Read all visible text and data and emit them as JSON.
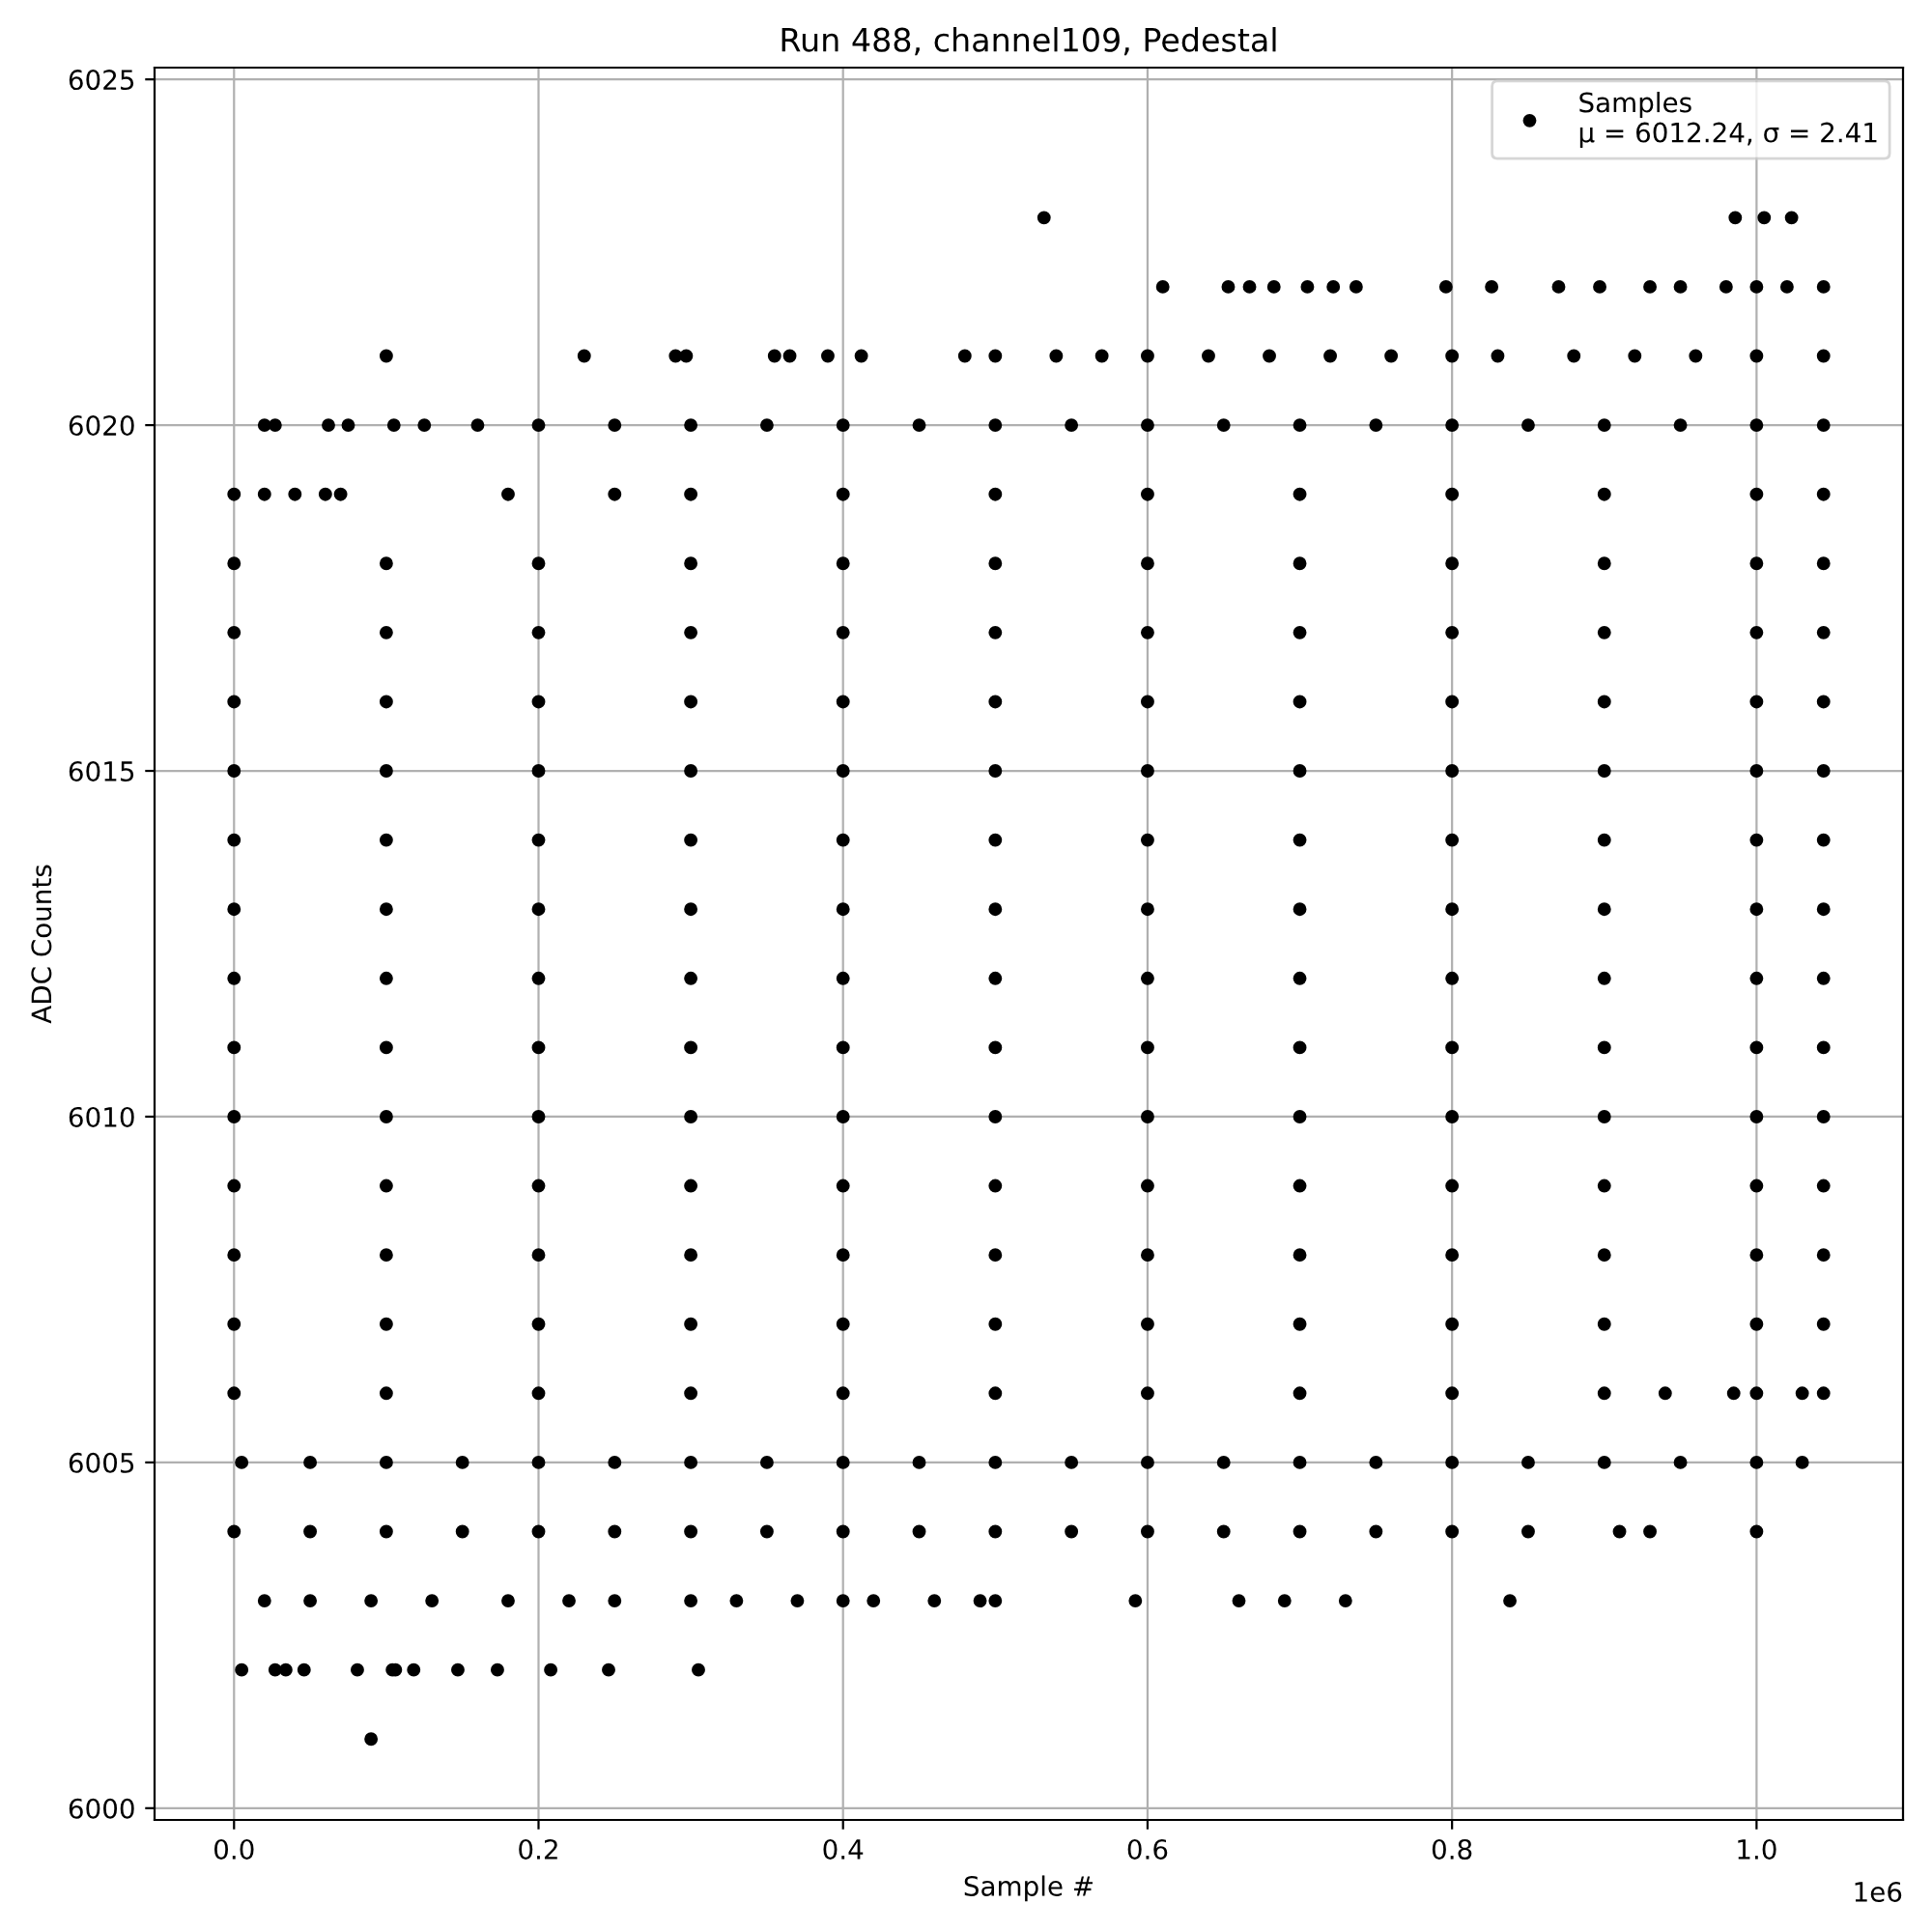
{
  "chart_data": {
    "type": "scatter",
    "title": "Run 488, channel109, Pedestal",
    "xlabel": "Sample #",
    "ylabel": "ADC Counts",
    "xlim": [
      -0.0522,
      1.0962
    ],
    "ylim": [
      5999.83,
      6025.17
    ],
    "xticks": [
      {
        "value": 0,
        "label": "0.0"
      },
      0.2,
      0.4,
      0.6,
      0.8,
      {
        "value": 1,
        "label": "1.0"
      }
    ],
    "yticks": [
      6000,
      6005,
      6010,
      6015,
      6020,
      6025
    ],
    "annotations": [
      "1e6"
    ],
    "grid": true,
    "legend": "top right",
    "marker": "circle",
    "series": [
      {
        "name": "Samples\nμ = 6012.24, σ = 2.41",
        "color": "#000000",
        "x": [
          0.09,
          0.005,
          0.027,
          0.034,
          0.046,
          0.081,
          0.104,
          0.106,
          0.118,
          0.147,
          0.173,
          0.208,
          0.246,
          0.305,
          0.02,
          0.05,
          0.09,
          0.13,
          0.18,
          0.22,
          0.25,
          0.3,
          0.33,
          0.37,
          0.4,
          0.42,
          0.46,
          0.49,
          0.5,
          0.592,
          0.66,
          0.69,
          0.73,
          0.838,
          0,
          0.05,
          0.1,
          0.15,
          0.2,
          0.25,
          0.3,
          0.35,
          0.4,
          0.45,
          0.5,
          0.55,
          0.6,
          0.65,
          0.7,
          0.75,
          0.8,
          0.85,
          0.91,
          0.93,
          1.0,
          0.005,
          0.05,
          0.1,
          0.15,
          0.2,
          0.25,
          0.3,
          0.35,
          0.4,
          0.45,
          0.5,
          0.55,
          0.6,
          0.65,
          0.7,
          0.75,
          0.8,
          0.85,
          0.9,
          0.95,
          1.0,
          1.03,
          0,
          0.1,
          0.2,
          0.3,
          0.4,
          0.5,
          0.6,
          0.7,
          0.8,
          0.9,
          0.94,
          0.985,
          1.0,
          1.03,
          1.044,
          0,
          0.1,
          0.2,
          0.3,
          0.4,
          0.5,
          0.6,
          0.7,
          0.8,
          0.9,
          1.0,
          1.044,
          0,
          0.1,
          0.2,
          0.3,
          0.4,
          0.5,
          0.6,
          0.7,
          0.8,
          0.9,
          1.0,
          1.044,
          0,
          0.1,
          0.2,
          0.3,
          0.4,
          0.5,
          0.6,
          0.7,
          0.8,
          0.9,
          1.0,
          1.044,
          0,
          0.1,
          0.2,
          0.3,
          0.4,
          0.5,
          0.6,
          0.7,
          0.8,
          0.9,
          1.0,
          1.044,
          0,
          0.1,
          0.2,
          0.3,
          0.4,
          0.5,
          0.6,
          0.7,
          0.8,
          0.9,
          1.0,
          1.044,
          0,
          0.1,
          0.2,
          0.3,
          0.4,
          0.5,
          0.6,
          0.7,
          0.8,
          0.9,
          1.0,
          1.044,
          0,
          0.1,
          0.2,
          0.3,
          0.4,
          0.5,
          0.6,
          0.7,
          0.8,
          0.9,
          1.0,
          1.044,
          0,
          0.1,
          0.2,
          0.3,
          0.4,
          0.5,
          0.6,
          0.7,
          0.8,
          0.9,
          1.0,
          1.044,
          0,
          0.1,
          0.2,
          0.3,
          0.4,
          0.5,
          0.6,
          0.7,
          0.8,
          0.9,
          1.0,
          1.044,
          0,
          0.1,
          0.2,
          0.3,
          0.4,
          0.5,
          0.6,
          0.7,
          0.8,
          0.9,
          1.0,
          1.044,
          0,
          0.1,
          0.2,
          0.3,
          0.4,
          0.5,
          0.6,
          0.7,
          0.8,
          0.9,
          1.0,
          1.044,
          0,
          0.1,
          0.2,
          0.3,
          0.4,
          0.5,
          0.6,
          0.7,
          0.8,
          0.9,
          1.0,
          1.044,
          0,
          0.02,
          0.04,
          0.06,
          0.07,
          0.18,
          0.25,
          0.3,
          0.4,
          0.5,
          0.6,
          0.7,
          0.8,
          0.9,
          1.0,
          1.044,
          0.02,
          0.027,
          0.062,
          0.075,
          0.105,
          0.125,
          0.16,
          0.2,
          0.25,
          0.3,
          0.35,
          0.4,
          0.45,
          0.5,
          0.55,
          0.6,
          0.65,
          0.7,
          0.75,
          0.8,
          0.85,
          0.9,
          0.95,
          1.0,
          1.044,
          0.1,
          0.23,
          0.29,
          0.297,
          0.355,
          0.365,
          0.39,
          0.412,
          0.48,
          0.5,
          0.54,
          0.57,
          0.6,
          0.64,
          0.68,
          0.72,
          0.76,
          0.8,
          0.83,
          0.88,
          0.92,
          0.96,
          1.0,
          1.044,
          0.61,
          0.653,
          0.667,
          0.683,
          0.705,
          0.722,
          0.737,
          0.796,
          0.826,
          0.87,
          0.897,
          0.93,
          0.95,
          0.98,
          1.0,
          1.02,
          1.044,
          0.532,
          0.986,
          1.005,
          1.023
        ],
        "values": [
          6001,
          6002,
          6002,
          6002,
          6002,
          6002,
          6002,
          6002,
          6002,
          6002,
          6002,
          6002,
          6002,
          6002,
          6003,
          6003,
          6003,
          6003,
          6003,
          6003,
          6003,
          6003,
          6003,
          6003,
          6003,
          6003,
          6003,
          6003,
          6003,
          6003,
          6003,
          6003,
          6003,
          6003,
          6004,
          6004,
          6004,
          6004,
          6004,
          6004,
          6004,
          6004,
          6004,
          6004,
          6004,
          6004,
          6004,
          6004,
          6004,
          6004,
          6004,
          6004,
          6004,
          6004,
          6004,
          6005,
          6005,
          6005,
          6005,
          6005,
          6005,
          6005,
          6005,
          6005,
          6005,
          6005,
          6005,
          6005,
          6005,
          6005,
          6005,
          6005,
          6005,
          6005,
          6005,
          6005,
          6005,
          6006,
          6006,
          6006,
          6006,
          6006,
          6006,
          6006,
          6006,
          6006,
          6006,
          6006,
          6006,
          6006,
          6006,
          6006,
          6007,
          6007,
          6007,
          6007,
          6007,
          6007,
          6007,
          6007,
          6007,
          6007,
          6007,
          6007,
          6008,
          6008,
          6008,
          6008,
          6008,
          6008,
          6008,
          6008,
          6008,
          6008,
          6008,
          6008,
          6009,
          6009,
          6009,
          6009,
          6009,
          6009,
          6009,
          6009,
          6009,
          6009,
          6009,
          6009,
          6010,
          6010,
          6010,
          6010,
          6010,
          6010,
          6010,
          6010,
          6010,
          6010,
          6010,
          6010,
          6011,
          6011,
          6011,
          6011,
          6011,
          6011,
          6011,
          6011,
          6011,
          6011,
          6011,
          6011,
          6012,
          6012,
          6012,
          6012,
          6012,
          6012,
          6012,
          6012,
          6012,
          6012,
          6012,
          6012,
          6013,
          6013,
          6013,
          6013,
          6013,
          6013,
          6013,
          6013,
          6013,
          6013,
          6013,
          6013,
          6014,
          6014,
          6014,
          6014,
          6014,
          6014,
          6014,
          6014,
          6014,
          6014,
          6014,
          6014,
          6015,
          6015,
          6015,
          6015,
          6015,
          6015,
          6015,
          6015,
          6015,
          6015,
          6015,
          6015,
          6016,
          6016,
          6016,
          6016,
          6016,
          6016,
          6016,
          6016,
          6016,
          6016,
          6016,
          6016,
          6017,
          6017,
          6017,
          6017,
          6017,
          6017,
          6017,
          6017,
          6017,
          6017,
          6017,
          6017,
          6018,
          6018,
          6018,
          6018,
          6018,
          6018,
          6018,
          6018,
          6018,
          6018,
          6018,
          6018,
          6019,
          6019,
          6019,
          6019,
          6019,
          6019,
          6019,
          6019,
          6019,
          6019,
          6019,
          6019,
          6019,
          6019,
          6019,
          6019,
          6020,
          6020,
          6020,
          6020,
          6020,
          6020,
          6020,
          6020,
          6020,
          6020,
          6020,
          6020,
          6020,
          6020,
          6020,
          6020,
          6020,
          6020,
          6020,
          6020,
          6020,
          6020,
          6020,
          6020,
          6020,
          6021,
          6021,
          6021,
          6021,
          6021,
          6021,
          6021,
          6021,
          6021,
          6021,
          6021,
          6021,
          6021,
          6021,
          6021,
          6021,
          6021,
          6021,
          6021,
          6021,
          6021,
          6021,
          6021,
          6021,
          6022,
          6022,
          6022,
          6022,
          6022,
          6022,
          6022,
          6022,
          6022,
          6022,
          6022,
          6022,
          6022,
          6022,
          6022,
          6022,
          6022,
          6023,
          6023,
          6023,
          6023
        ]
      }
    ]
  }
}
